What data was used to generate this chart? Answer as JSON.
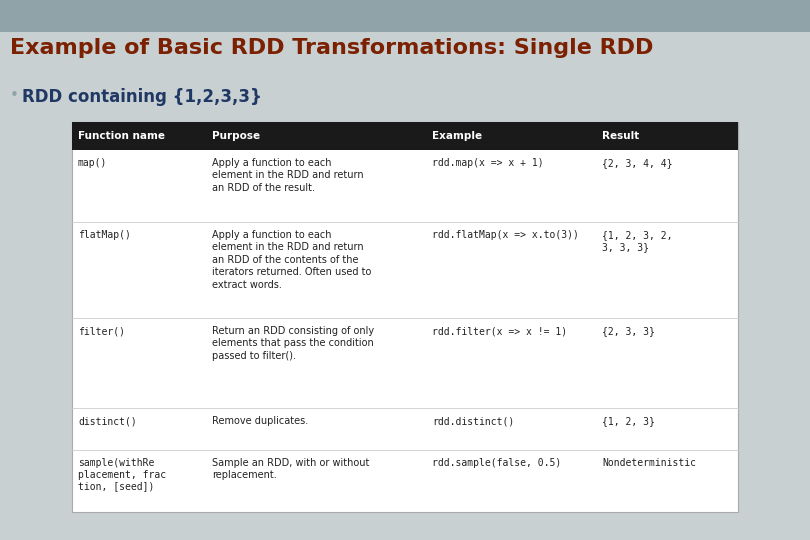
{
  "title": "Example of Basic RDD Transformations: Single RDD",
  "subtitle": "RDD containing {1,2,3,3}",
  "title_color": "#7B2000",
  "subtitle_color": "#1F3864",
  "bullet_color": "#8fa3a8",
  "header_bg": "#1a1a1a",
  "header_text_color": "#ffffff",
  "bg_color": "#c8d0d2",
  "table_bg": "#ffffff",
  "top_bar_color": "#8fa3a8",
  "header_row": [
    "Function name",
    "Purpose",
    "Example",
    "Result"
  ],
  "rows": [
    {
      "func": "map()",
      "purpose": "Apply a function to each\nelement in the RDD and return\nan RDD of the result.",
      "example": "rdd.map(x => x + 1)",
      "result": "{2, 3, 4, 4}"
    },
    {
      "func": "flatMap()",
      "purpose": "Apply a function to each\nelement in the RDD and return\nan RDD of the contents of the\niterators returned. Often used to\nextract words.",
      "example": "rdd.flatMap(x => x.to(3))",
      "result": "{1, 2, 3, 2,\n3, 3, 3}"
    },
    {
      "func": "filter()",
      "purpose": "Return an RDD consisting of only\nelements that pass the condition\npassed to filter().",
      "example": "rdd.filter(x => x != 1)",
      "result": "{2, 3, 3}"
    },
    {
      "func": "distinct()",
      "purpose": "Remove duplicates.",
      "example": "rdd.distinct()",
      "result": "{1, 2, 3}"
    },
    {
      "func": "sample(withRe\nplacement, frac\ntion, [seed])",
      "purpose": "Sample an RDD, with or without\nreplacement.",
      "example": "rdd.sample(false, 0.5)",
      "result": "Nondeterministic"
    }
  ]
}
